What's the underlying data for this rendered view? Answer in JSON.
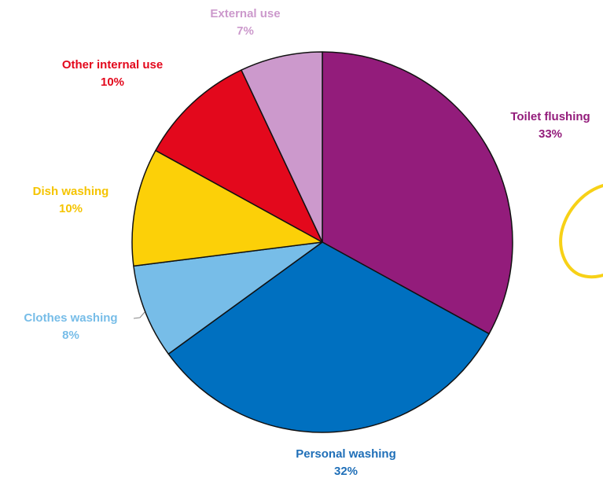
{
  "chart_data": {
    "type": "pie",
    "title": "",
    "start_angle_deg": 0,
    "direction": "clockwise",
    "slice_outline": "#111111",
    "slices": [
      {
        "label": "Toilet flushing",
        "pct_label": "33%",
        "value": 33,
        "color": "#931C7B",
        "label_color": "#931C7B"
      },
      {
        "label": "Personal washing",
        "pct_label": "32%",
        "value": 32,
        "color": "#0070C0",
        "label_color": "#1F6FB8"
      },
      {
        "label": "Clothes washing",
        "pct_label": "8%",
        "value": 8,
        "color": "#77BDE8",
        "label_color": "#77BDE8"
      },
      {
        "label": "Dish washing",
        "pct_label": "10%",
        "value": 10,
        "color": "#FCD008",
        "label_color": "#F5C400"
      },
      {
        "label": "Other internal use",
        "pct_label": "10%",
        "value": 10,
        "color": "#E3081C",
        "label_color": "#E3081C"
      },
      {
        "label": "External use",
        "pct_label": "7%",
        "value": 7,
        "color": "#CC99CC",
        "label_color": "#CC99CC"
      }
    ]
  },
  "annotation": {
    "color": "#F7D117"
  }
}
